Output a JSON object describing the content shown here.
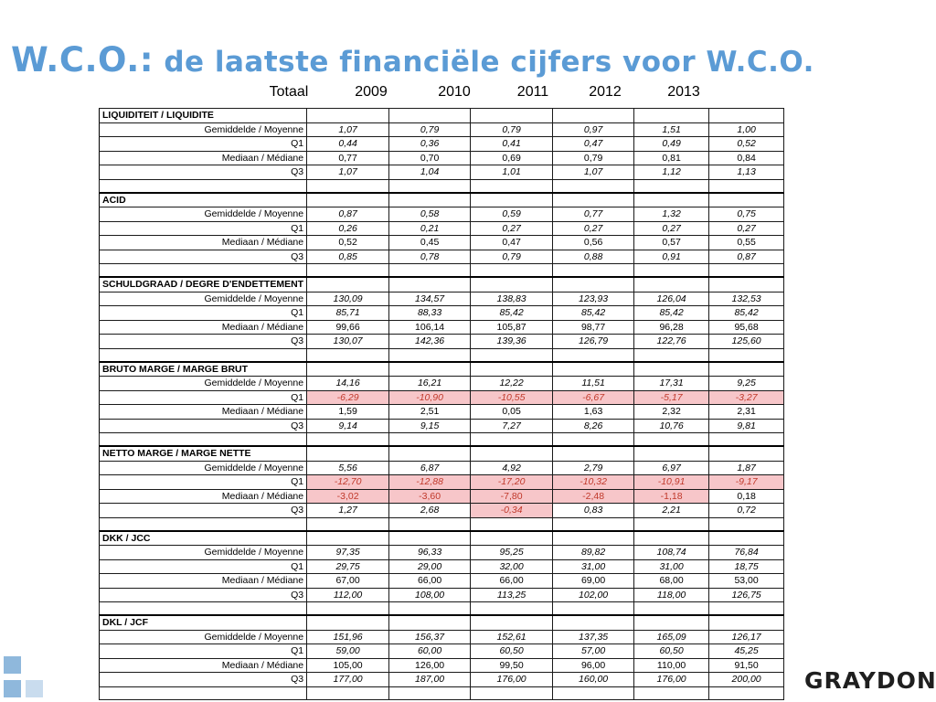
{
  "title": {
    "prefix": "W.C.O.:",
    "rest": " de laatste financiële cijfers voor W.C.O."
  },
  "columns": [
    "Totaal",
    "2009",
    "2010",
    "2011",
    "2012",
    "2013"
  ],
  "sections": [
    {
      "title": "LIQUIDITEIT / LIQUIDITE",
      "rows": [
        {
          "label": "Gemiddelde / Moyenne",
          "values": [
            "1,07",
            "0,79",
            "0,79",
            "0,97",
            "1,51",
            "1,00"
          ]
        },
        {
          "label": "Q1",
          "values": [
            "0,44",
            "0,36",
            "0,41",
            "0,47",
            "0,49",
            "0,52"
          ]
        },
        {
          "label": "Mediaan / Médiane",
          "values": [
            "0,77",
            "0,70",
            "0,69",
            "0,79",
            "0,81",
            "0,84"
          ]
        },
        {
          "label": "Q3",
          "values": [
            "1,07",
            "1,04",
            "1,01",
            "1,07",
            "1,12",
            "1,13"
          ]
        }
      ]
    },
    {
      "title": "ACID",
      "rows": [
        {
          "label": "Gemiddelde / Moyenne",
          "values": [
            "0,87",
            "0,58",
            "0,59",
            "0,77",
            "1,32",
            "0,75"
          ]
        },
        {
          "label": "Q1",
          "values": [
            "0,26",
            "0,21",
            "0,27",
            "0,27",
            "0,27",
            "0,27"
          ]
        },
        {
          "label": "Mediaan / Médiane",
          "values": [
            "0,52",
            "0,45",
            "0,47",
            "0,56",
            "0,57",
            "0,55"
          ]
        },
        {
          "label": "Q3",
          "values": [
            "0,85",
            "0,78",
            "0,79",
            "0,88",
            "0,91",
            "0,87"
          ]
        }
      ]
    },
    {
      "title": "SCHULDGRAAD / DEGRE D'ENDETTEMENT",
      "rows": [
        {
          "label": "Gemiddelde / Moyenne",
          "values": [
            "130,09",
            "134,57",
            "138,83",
            "123,93",
            "126,04",
            "132,53"
          ]
        },
        {
          "label": "Q1",
          "values": [
            "85,71",
            "88,33",
            "85,42",
            "85,42",
            "85,42",
            "85,42"
          ]
        },
        {
          "label": "Mediaan / Médiane",
          "values": [
            "99,66",
            "106,14",
            "105,87",
            "98,77",
            "96,28",
            "95,68"
          ]
        },
        {
          "label": "Q3",
          "values": [
            "130,07",
            "142,36",
            "139,36",
            "126,79",
            "122,76",
            "125,60"
          ]
        }
      ]
    },
    {
      "title": "BRUTO MARGE  / MARGE BRUT",
      "rows": [
        {
          "label": "Gemiddelde / Moyenne",
          "values": [
            "14,16",
            "16,21",
            "12,22",
            "11,51",
            "17,31",
            "9,25"
          ]
        },
        {
          "label": "Q1",
          "values": [
            "-6,29",
            "-10,90",
            "-10,55",
            "-6,67",
            "-5,17",
            "-3,27"
          ],
          "highlight": [
            0,
            1,
            2,
            3,
            4,
            5
          ]
        },
        {
          "label": "Mediaan / Médiane",
          "values": [
            "1,59",
            "2,51",
            "0,05",
            "1,63",
            "2,32",
            "2,31"
          ]
        },
        {
          "label": "Q3",
          "values": [
            "9,14",
            "9,15",
            "7,27",
            "8,26",
            "10,76",
            "9,81"
          ]
        }
      ]
    },
    {
      "title": "NETTO MARGE / MARGE NETTE",
      "rows": [
        {
          "label": "Gemiddelde / Moyenne",
          "values": [
            "5,56",
            "6,87",
            "4,92",
            "2,79",
            "6,97",
            "1,87"
          ]
        },
        {
          "label": "Q1",
          "values": [
            "-12,70",
            "-12,88",
            "-17,20",
            "-10,32",
            "-10,91",
            "-9,17"
          ],
          "highlight": [
            0,
            1,
            2,
            3,
            4,
            5
          ]
        },
        {
          "label": "Mediaan / Médiane",
          "values": [
            "-3,02",
            "-3,60",
            "-7,80",
            "-2,48",
            "-1,18",
            "0,18"
          ],
          "highlight": [
            0,
            1,
            2,
            3,
            4
          ]
        },
        {
          "label": "Q3",
          "values": [
            "1,27",
            "2,68",
            "-0,34",
            "0,83",
            "2,21",
            "0,72"
          ],
          "highlight": [
            2
          ]
        }
      ]
    },
    {
      "title": "DKK / JCC",
      "rows": [
        {
          "label": "Gemiddelde / Moyenne",
          "values": [
            "97,35",
            "96,33",
            "95,25",
            "89,82",
            "108,74",
            "76,84"
          ]
        },
        {
          "label": "Q1",
          "values": [
            "29,75",
            "29,00",
            "32,00",
            "31,00",
            "31,00",
            "18,75"
          ]
        },
        {
          "label": "Mediaan / Médiane",
          "values": [
            "67,00",
            "66,00",
            "66,00",
            "69,00",
            "68,00",
            "53,00"
          ]
        },
        {
          "label": "Q3",
          "values": [
            "112,00",
            "108,00",
            "113,25",
            "102,00",
            "118,00",
            "126,75"
          ]
        }
      ]
    },
    {
      "title": "DKL / JCF",
      "rows": [
        {
          "label": "Gemiddelde / Moyenne",
          "values": [
            "151,96",
            "156,37",
            "152,61",
            "137,35",
            "165,09",
            "126,17"
          ]
        },
        {
          "label": "Q1",
          "values": [
            "59,00",
            "60,00",
            "60,50",
            "57,00",
            "60,50",
            "45,25"
          ]
        },
        {
          "label": "Mediaan / Médiane",
          "values": [
            "105,00",
            "126,00",
            "99,50",
            "96,00",
            "110,00",
            "91,50"
          ]
        },
        {
          "label": "Q3",
          "values": [
            "177,00",
            "187,00",
            "176,00",
            "160,00",
            "176,00",
            "200,00"
          ]
        }
      ]
    }
  ],
  "logo": {
    "text": "GRAYDON"
  },
  "colors": {
    "title": "#5b9bd5",
    "highlight_bg": "#f7c6c9",
    "highlight_text": "#c0392b",
    "squares_dark": "#8fb8dc",
    "squares_light": "#c9dcee"
  }
}
